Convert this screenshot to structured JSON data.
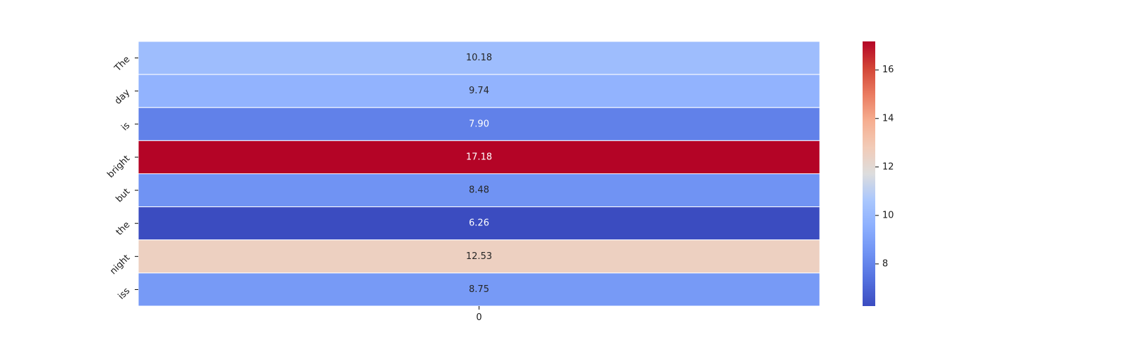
{
  "chart_data": {
    "type": "heatmap",
    "title": "",
    "xlabel": "",
    "ylabel": "",
    "rows": [
      "The",
      "day",
      "is",
      "bright",
      "but",
      "the",
      "night",
      "iss"
    ],
    "columns": [
      "0"
    ],
    "values": [
      10.18,
      9.74,
      7.9,
      17.18,
      8.48,
      6.26,
      12.53,
      8.75
    ],
    "value_labels": [
      "10.18",
      "9.74",
      "7.90",
      "17.18",
      "8.48",
      "6.26",
      "12.53",
      "8.75"
    ],
    "colormap": "coolwarm",
    "vmin": 6.26,
    "vmax": 17.18,
    "colorbar": {
      "ticks": [
        8,
        10,
        12,
        14,
        16
      ],
      "tick_labels": [
        "8",
        "10",
        "12",
        "14",
        "16"
      ],
      "placement": "right"
    },
    "grid": false,
    "cell_separator_color": "#ffffff"
  }
}
